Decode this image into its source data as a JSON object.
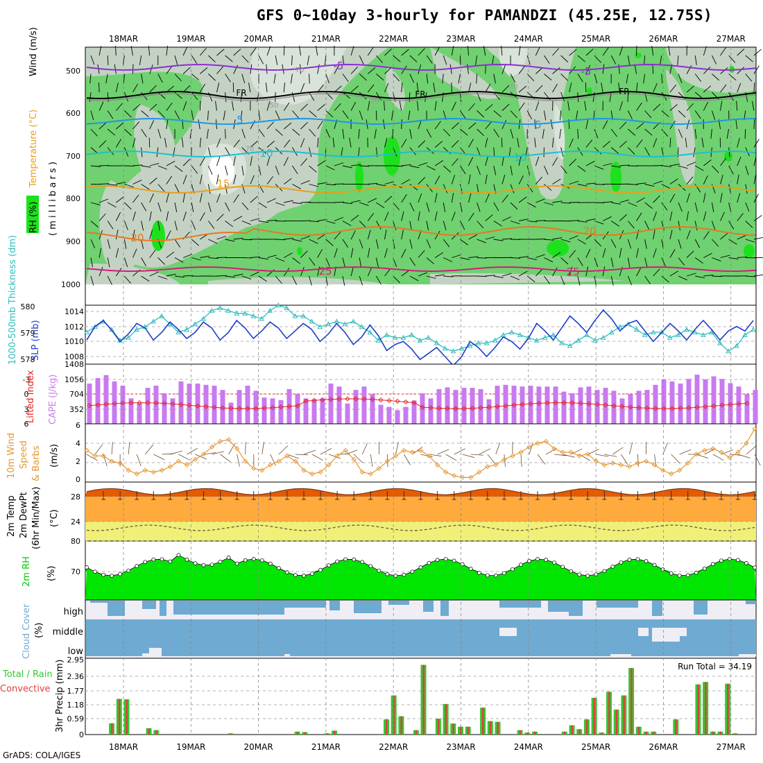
{
  "title": "GFS 0~10day 3-hourly for PAMANDZI (45.25E, 12.75S)",
  "credit": "GrADS: COLA/IGES",
  "colors": {
    "rh_light": "#d9e3d9",
    "rh_mid": "#c4d2c4",
    "rh_green": "#70d170",
    "rh_bright": "#1ee11e",
    "temp_minus5": "#8c2ed2",
    "temp_fr": "#000000",
    "temp_5": "#1e96e6",
    "temp_10": "#1ebed2",
    "temp_15": "#e6a01e",
    "temp_20": "#e6781e",
    "temp_25": "#d21e78",
    "slp": "#1e3cc8",
    "thickness": "#2ebebe",
    "cape": "#c87af0",
    "lifted": "#e61e1e",
    "wind": "#e69632",
    "temp_band": "#ffaa3c",
    "temp_top": "#e65a00",
    "dew_band": "#f0f078",
    "rh2m": "#00e600",
    "rh2m_dark": "#00b400",
    "cloud": "#6eaad2",
    "cloud_bg": "#f0eef5",
    "precip_total": "#32c832",
    "precip_conv": "#e63c3c"
  },
  "dates": [
    "18MAR",
    "19MAR",
    "20MAR",
    "21MAR",
    "22MAR",
    "23MAR",
    "24MAR",
    "25MAR",
    "26MAR",
    "27MAR"
  ],
  "panels": {
    "upper": {
      "ylabel_parts": [
        "RH (%)",
        "Temperature (°C)",
        "Wind (m/s)"
      ],
      "ylabel_right": "( m i l l i b a r s )",
      "yticks": [
        "500",
        "600",
        "700",
        "800",
        "900",
        "1000"
      ],
      "contour_labels": [
        "-5",
        "-5",
        "FR",
        "FR",
        "FR",
        "5",
        "5",
        "10",
        "10",
        "15",
        "20",
        "20",
        "25",
        "25"
      ],
      "rh_labels": [
        "70",
        "50",
        "50",
        "70",
        "70"
      ]
    },
    "slp": {
      "ylabel_left": "1000-500mb Thickness (dm)",
      "ylabel_right": "SLP (mb)",
      "yticks_left": [
        "580",
        "579",
        "578"
      ],
      "yticks_right": [
        "1014",
        "1012",
        "1010",
        "1008"
      ]
    },
    "cape": {
      "ylabel_left": "Lifted Index",
      "ylabel_right": "CAPE (J/kg)",
      "yticks_left": [
        "-3",
        "0",
        "3",
        "6"
      ],
      "yticks_right": [
        "1408",
        "1056",
        "704",
        "352"
      ]
    },
    "wind": {
      "ylabel": [
        "10m Wind",
        "Speed",
        "& Barbs"
      ],
      "unit": "(m/s)",
      "yticks": [
        "6",
        "4",
        "2",
        "0"
      ]
    },
    "temp": {
      "ylabel": [
        "2m Temp",
        "2m DewPt",
        "(6hr Min/Max)"
      ],
      "unit": "(°C)",
      "yticks": [
        "28",
        "24"
      ]
    },
    "rh": {
      "ylabel": "2m RH",
      "unit": "(%)",
      "yticks": [
        "80",
        "70"
      ]
    },
    "cloud": {
      "ylabel": "Cloud Cover",
      "unit": "(%)",
      "levels": [
        "high",
        "middle",
        "low"
      ]
    },
    "precip": {
      "ylabel_parts": [
        "Total",
        "/",
        "Rain",
        "Convective"
      ],
      "ylabel_right": "3hr Precip (mm)",
      "yticks": [
        "2.95",
        "2.36",
        "1.77",
        "1.18",
        "0.59",
        "0"
      ],
      "run_total": "Run Total = 34.19"
    }
  },
  "chart_data": [
    {
      "type": "line",
      "title": "SLP (mb)",
      "x": [
        "17MAR18",
        "17MAR21",
        "18MAR00",
        "18MAR03",
        "18MAR06",
        "18MAR09",
        "18MAR12",
        "18MAR15",
        "18MAR18",
        "18MAR21",
        "19MAR00",
        "19MAR03",
        "19MAR06",
        "19MAR09",
        "19MAR12",
        "19MAR15",
        "19MAR18",
        "19MAR21",
        "20MAR00",
        "20MAR03",
        "20MAR06",
        "20MAR09",
        "20MAR12",
        "20MAR15",
        "20MAR18",
        "20MAR21",
        "21MAR00",
        "21MAR03",
        "21MAR06",
        "21MAR09",
        "21MAR12",
        "21MAR15",
        "21MAR18",
        "21MAR21",
        "22MAR00",
        "22MAR03",
        "22MAR06",
        "22MAR09",
        "22MAR12",
        "22MAR15",
        "22MAR18",
        "22MAR21",
        "23MAR00",
        "23MAR03",
        "23MAR06",
        "23MAR09",
        "23MAR12",
        "23MAR15",
        "23MAR18",
        "23MAR21",
        "24MAR00",
        "24MAR03",
        "24MAR06",
        "24MAR09",
        "24MAR12",
        "24MAR15",
        "24MAR18",
        "24MAR21",
        "25MAR00",
        "25MAR03",
        "25MAR06",
        "25MAR09",
        "25MAR12",
        "25MAR15",
        "25MAR18",
        "25MAR21",
        "26MAR00",
        "26MAR03",
        "26MAR06",
        "26MAR09",
        "26MAR12",
        "26MAR15",
        "26MAR18",
        "26MAR21",
        "27MAR00",
        "27MAR03",
        "27MAR06",
        "27MAR09",
        "27MAR12",
        "27MAR15",
        "27MAR18"
      ],
      "series": [
        {
          "name": "SLP (mb)",
          "values": [
            1010.2,
            1012.0,
            1012.8,
            1011.5,
            1010.0,
            1011.0,
            1012.4,
            1011.8,
            1010.2,
            1011.2,
            1012.6,
            1011.6,
            1010.4,
            1011.2,
            1012.6,
            1011.8,
            1010.2,
            1011.2,
            1012.8,
            1011.8,
            1010.4,
            1011.4,
            1012.6,
            1011.8,
            1010.4,
            1011.4,
            1012.4,
            1011.6,
            1010.0,
            1011.0,
            1012.4,
            1011.2,
            1009.6,
            1010.6,
            1012.2,
            1010.8,
            1008.8,
            1009.6,
            1010.0,
            1009.0,
            1007.6,
            1008.4,
            1009.2,
            1008.0,
            1006.8,
            1008.0,
            1010.0,
            1009.2,
            1008.0,
            1009.2,
            1010.6,
            1010.0,
            1009.0,
            1010.4,
            1012.4,
            1011.4,
            1010.2,
            1011.8,
            1013.4,
            1012.4,
            1011.2,
            1012.8,
            1014.2,
            1013.0,
            1011.4,
            1012.4,
            1012.8,
            1011.4,
            1010.0,
            1011.2,
            1012.4,
            1011.4,
            1010.2,
            1011.6,
            1012.8,
            1011.6,
            1010.2,
            1011.4,
            1012.0,
            1011.4,
            1012.8
          ]
        },
        {
          "name": "1000-500mb Thickness (dm)",
          "values": [
            579.0,
            579.2,
            579.4,
            579.1,
            578.7,
            578.8,
            579.1,
            579.2,
            579.4,
            579.6,
            579.3,
            579.0,
            579.1,
            579.3,
            579.5,
            579.8,
            579.9,
            579.8,
            579.7,
            579.7,
            579.6,
            579.5,
            579.8,
            580.0,
            579.9,
            579.6,
            579.6,
            579.4,
            579.2,
            579.3,
            579.4,
            579.3,
            579.4,
            579.2,
            579.0,
            578.7,
            578.9,
            578.8,
            578.8,
            578.9,
            578.7,
            578.8,
            578.6,
            578.4,
            578.3,
            578.4,
            578.5,
            578.6,
            578.6,
            578.7,
            578.9,
            579.0,
            578.9,
            578.8,
            578.7,
            578.8,
            578.9,
            578.6,
            578.5,
            578.7,
            578.9,
            578.7,
            578.8,
            579.0,
            579.2,
            579.3,
            579.1,
            578.9,
            579.0,
            579.0,
            578.8,
            578.9,
            579.1,
            579.0,
            578.9,
            579.0,
            578.6,
            578.3,
            578.5,
            578.9,
            579.1
          ]
        }
      ]
    },
    {
      "type": "bar",
      "title": "CAPE (J/kg)",
      "values": [
        950,
        1080,
        1150,
        1000,
        900,
        600,
        480,
        850,
        900,
        720,
        600,
        1000,
        950,
        950,
        920,
        900,
        800,
        500,
        800,
        900,
        780,
        620,
        600,
        560,
        820,
        700,
        600,
        580,
        600,
        950,
        880,
        480,
        800,
        880,
        700,
        450,
        400,
        320,
        400,
        550,
        720,
        600,
        820,
        860,
        800,
        850,
        850,
        820,
        580,
        900,
        920,
        900,
        880,
        900,
        880,
        880,
        880,
        760,
        720,
        860,
        880,
        800,
        850,
        780,
        600,
        700,
        780,
        800,
        920,
        1050,
        1000,
        950,
        1060,
        1160,
        1050,
        1120,
        1060,
        960,
        880,
        700,
        800
      ]
    },
    {
      "type": "line",
      "title": "10m Wind Speed (m/s)",
      "values": [
        3.2,
        2.6,
        2.6,
        2.0,
        1.8,
        1.0,
        0.6,
        1.0,
        0.8,
        1.0,
        1.4,
        2.0,
        1.6,
        2.2,
        2.8,
        3.6,
        4.2,
        4.4,
        3.4,
        2.0,
        1.2,
        1.0,
        1.6,
        2.0,
        2.6,
        2.0,
        1.0,
        0.6,
        0.8,
        1.6,
        2.6,
        3.2,
        2.2,
        0.8,
        0.6,
        1.2,
        2.0,
        2.6,
        3.2,
        3.0,
        3.2,
        2.6,
        1.6,
        0.8,
        0.4,
        0.2,
        0.2,
        0.8,
        1.4,
        1.6,
        2.2,
        2.6,
        3.0,
        3.6,
        4.0,
        4.2,
        3.4,
        3.0,
        3.0,
        2.6,
        2.8,
        2.0,
        1.6,
        1.8,
        1.6,
        1.4,
        1.8,
        2.0,
        1.6,
        1.0,
        0.6,
        1.0,
        1.8,
        2.8,
        3.2,
        3.4,
        3.0,
        2.4,
        3.0,
        4.0,
        5.6
      ]
    },
    {
      "type": "bar",
      "title": "3hr Precip (mm)",
      "ylim": [
        0,
        2.95
      ],
      "values": [
        0,
        0,
        0,
        0.46,
        1.46,
        1.44,
        0,
        0,
        0.26,
        0.18,
        0,
        0,
        0,
        0,
        0,
        0,
        0,
        0,
        0,
        0.05,
        0,
        0,
        0,
        0,
        0,
        0,
        0,
        0,
        0.12,
        0.1,
        0,
        0,
        0.05,
        0.16,
        0,
        0,
        0,
        0,
        0,
        0,
        0.62,
        1.6,
        0.75,
        0,
        0.18,
        2.85,
        0,
        0.65,
        1.25,
        0.45,
        0.32,
        0.32,
        0,
        1.1,
        0.55,
        0.52,
        0,
        0,
        0.18,
        0.08,
        0.12,
        0,
        0,
        0,
        0.12,
        0.38,
        0.22,
        0.62,
        1.5,
        0.08,
        1.75,
        1.02,
        1.6,
        2.72,
        0.32,
        0.12,
        0.12,
        0,
        0,
        0.62,
        0,
        0,
        2.05,
        2.15,
        0.12,
        0.12,
        2.08,
        0.05,
        0
      ]
    }
  ]
}
